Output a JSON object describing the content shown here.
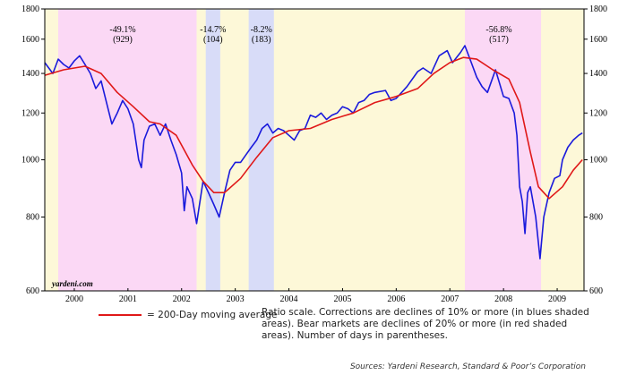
{
  "chart_data": {
    "type": "line",
    "log_scale": true,
    "watermark": "yardeni.com",
    "note": "Ratio scale. Corrections are declines of 10% or more (in blues shaded areas). Bear markets are declines of 20% or more (in red shaded areas). Number of days in parentheses.",
    "source": "Sources: Yardeni Research, Standard & Poor’s Corporation",
    "background_color": "#fdf8d8",
    "xlim": [
      1999.95,
      2010.0
    ],
    "xticks": [
      {
        "value": 2000.5,
        "label": "2000"
      },
      {
        "value": 2001.5,
        "label": "2001"
      },
      {
        "value": 2002.5,
        "label": "2002"
      },
      {
        "value": 2003.5,
        "label": "2003"
      },
      {
        "value": 2004.5,
        "label": "2004"
      },
      {
        "value": 2005.5,
        "label": "2005"
      },
      {
        "value": 2006.5,
        "label": "2006"
      },
      {
        "value": 2007.5,
        "label": "2007"
      },
      {
        "value": 2008.5,
        "label": "2008"
      },
      {
        "value": 2009.5,
        "label": "2009"
      }
    ],
    "ylim": [
      600,
      1800
    ],
    "yticks": [
      600,
      800,
      1000,
      1200,
      1400,
      1600,
      1800
    ],
    "shaded_regions": [
      {
        "start": 2000.2,
        "end": 2002.78,
        "color": "#fbd8f5",
        "label": "-49.1%",
        "days": "(929)"
      },
      {
        "start": 2002.95,
        "end": 2003.22,
        "color": "#d8dcf8",
        "label": "-14.7%",
        "days": "(104)"
      },
      {
        "start": 2003.75,
        "end": 2004.22,
        "color": "#d8dcf8",
        "label": "-8.2%",
        "days": "(183)"
      },
      {
        "start": 2007.78,
        "end": 2009.2,
        "color": "#fbd8f5",
        "label": "-56.8%",
        "days": "(517)"
      }
    ],
    "series": [
      {
        "color": "#1a1adc",
        "width": 1.6,
        "x": [
          1999.95,
          2000.1,
          2000.2,
          2000.3,
          2000.4,
          2000.5,
          2000.6,
          2000.7,
          2000.8,
          2000.9,
          2001.0,
          2001.1,
          2001.2,
          2001.3,
          2001.4,
          2001.5,
          2001.6,
          2001.7,
          2001.75,
          2001.8,
          2001.9,
          2002.0,
          2002.1,
          2002.2,
          2002.3,
          2002.4,
          2002.5,
          2002.55,
          2002.6,
          2002.7,
          2002.78,
          2002.9,
          2003.0,
          2003.1,
          2003.2,
          2003.3,
          2003.4,
          2003.5,
          2003.6,
          2003.7,
          2003.8,
          2003.9,
          2004.0,
          2004.1,
          2004.2,
          2004.3,
          2004.4,
          2004.5,
          2004.6,
          2004.7,
          2004.8,
          2004.9,
          2005.0,
          2005.1,
          2005.2,
          2005.3,
          2005.4,
          2005.5,
          2005.6,
          2005.7,
          2005.8,
          2005.9,
          2006.0,
          2006.1,
          2006.3,
          2006.4,
          2006.5,
          2006.7,
          2006.9,
          2007.0,
          2007.15,
          2007.3,
          2007.45,
          2007.55,
          2007.7,
          2007.78,
          2007.9,
          2008.0,
          2008.1,
          2008.2,
          2008.35,
          2008.5,
          2008.6,
          2008.7,
          2008.75,
          2008.8,
          2008.85,
          2008.9,
          2008.95,
          2009.0,
          2009.1,
          2009.18,
          2009.25,
          2009.35,
          2009.45,
          2009.55,
          2009.6,
          2009.7,
          2009.8,
          2009.9,
          2009.97
        ],
        "values": [
          1460,
          1400,
          1480,
          1450,
          1430,
          1470,
          1500,
          1450,
          1400,
          1320,
          1360,
          1250,
          1150,
          1200,
          1260,
          1220,
          1150,
          1000,
          970,
          1080,
          1140,
          1150,
          1100,
          1150,
          1080,
          1020,
          950,
          820,
          900,
          860,
          780,
          920,
          880,
          840,
          800,
          880,
          960,
          990,
          990,
          1020,
          1050,
          1080,
          1130,
          1150,
          1110,
          1130,
          1120,
          1100,
          1080,
          1120,
          1130,
          1190,
          1180,
          1200,
          1170,
          1190,
          1200,
          1230,
          1220,
          1200,
          1250,
          1260,
          1290,
          1300,
          1310,
          1260,
          1270,
          1330,
          1410,
          1430,
          1400,
          1500,
          1530,
          1460,
          1520,
          1560,
          1460,
          1380,
          1330,
          1300,
          1420,
          1280,
          1270,
          1200,
          1100,
          900,
          850,
          750,
          880,
          900,
          800,
          680,
          800,
          880,
          930,
          940,
          1000,
          1050,
          1080,
          1100,
          1110
        ]
      },
      {
        "name": "= 200-Day moving average",
        "color": "#e01818",
        "width": 1.6,
        "x": [
          1999.95,
          2000.3,
          2000.7,
          2001.0,
          2001.3,
          2001.6,
          2001.9,
          2002.1,
          2002.4,
          2002.7,
          2002.9,
          2003.1,
          2003.3,
          2003.6,
          2003.9,
          2004.2,
          2004.5,
          2004.9,
          2005.3,
          2005.7,
          2006.1,
          2006.5,
          2006.9,
          2007.2,
          2007.5,
          2007.75,
          2008.0,
          2008.3,
          2008.6,
          2008.8,
          2009.0,
          2009.15,
          2009.35,
          2009.6,
          2009.8,
          2009.97
        ],
        "values": [
          1390,
          1420,
          1440,
          1400,
          1300,
          1230,
          1160,
          1150,
          1100,
          980,
          920,
          880,
          880,
          930,
          1010,
          1090,
          1120,
          1130,
          1170,
          1200,
          1250,
          1280,
          1320,
          1400,
          1460,
          1490,
          1480,
          1420,
          1370,
          1250,
          1030,
          900,
          860,
          900,
          960,
          1000
        ]
      }
    ]
  }
}
